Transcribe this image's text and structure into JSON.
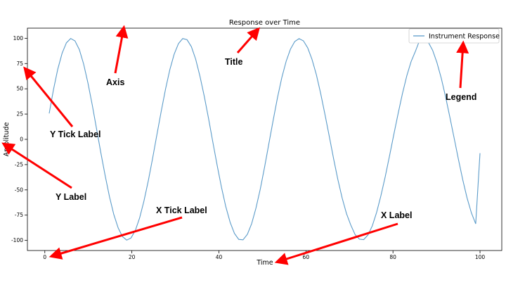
{
  "chart_data": {
    "type": "line",
    "title": "Response over Time",
    "xlabel": "Time",
    "ylabel": "Amplitude",
    "xlim": [
      -4,
      105
    ],
    "ylim": [
      -110,
      110
    ],
    "xticks": [
      0,
      20,
      40,
      60,
      80,
      100
    ],
    "yticks": [
      -100,
      -75,
      -50,
      -25,
      0,
      25,
      50,
      75,
      100
    ],
    "grid": false,
    "legend_position": "top-right",
    "series": [
      {
        "name": "Instrument Response",
        "color": "#5b9bc9",
        "x": [
          1.0,
          1.99,
          2.98,
          3.97,
          4.96,
          5.95,
          6.94,
          7.93,
          8.92,
          9.91,
          10.9,
          11.89,
          12.88,
          13.87,
          14.86,
          15.85,
          16.84,
          17.83,
          18.82,
          19.81,
          20.8,
          21.79,
          22.78,
          23.77,
          24.76,
          25.75,
          26.74,
          27.73,
          28.72,
          29.71,
          30.7,
          31.69,
          32.68,
          33.67,
          34.66,
          35.65,
          36.64,
          37.63,
          38.62,
          39.61,
          40.6,
          41.59,
          42.58,
          43.57,
          44.56,
          45.55,
          46.54,
          47.53,
          48.52,
          49.51,
          50.5,
          51.49,
          52.48,
          53.47,
          54.46,
          55.45,
          56.44,
          57.43,
          58.42,
          59.41,
          60.4,
          61.39,
          62.38,
          63.37,
          64.36,
          65.35,
          66.34,
          67.33,
          68.32,
          69.31,
          70.3,
          71.29,
          72.28,
          73.27,
          74.26,
          75.25,
          76.24,
          77.23,
          78.22,
          79.21,
          80.2,
          81.19,
          82.18,
          83.17,
          84.16,
          85.15,
          86.14,
          87.13,
          88.12,
          89.11,
          90.1,
          91.09,
          92.08,
          93.07,
          94.06,
          95.05,
          96.04,
          97.03,
          98.02,
          99.01,
          100.0
        ],
        "y": [
          25.6,
          49.2,
          69.4,
          85.2,
          95.5,
          99.8,
          97.4,
          88.8,
          74.5,
          55.9,
          33.9,
          10.4,
          -13.3,
          -36.1,
          -56.8,
          -74.3,
          -87.6,
          -96.2,
          -99.7,
          -97.6,
          -90.1,
          -77.7,
          -61.1,
          -41.1,
          -19.0,
          4.4,
          27.7,
          49.6,
          68.8,
          84.2,
          94.7,
          99.7,
          98.6,
          91.7,
          79.4,
          62.5,
          42.5,
          20.5,
          -2.9,
          -26.1,
          -47.6,
          -66.6,
          -82.1,
          -93.1,
          -99.0,
          -99.4,
          -94.0,
          -83.4,
          -68.1,
          -49.1,
          -27.4,
          -4.2,
          19.2,
          41.4,
          61.1,
          77.3,
          89.2,
          96.8,
          99.6,
          97.5,
          90.6,
          79.2,
          64.1,
          45.7,
          25.0,
          3.1,
          -18.9,
          -39.6,
          -58.1,
          -73.4,
          -84.7,
          -94.1,
          -98.8,
          -99.2,
          -94.6,
          -85.5,
          -72.3,
          -55.8,
          -36.8,
          -16.3,
          4.9,
          25.8,
          45.4,
          62.7,
          76.8,
          87.1,
          98.2,
          99.5,
          96.0,
          88.1,
          76.0,
          60.5,
          42.2,
          22.0,
          0.9,
          -20.1,
          -40.1,
          -58.0,
          -72.8,
          -83.6,
          -13.7
        ]
      }
    ],
    "annotations": [
      {
        "label": "Axis",
        "target": "axis"
      },
      {
        "label": "Title",
        "target": "title"
      },
      {
        "label": "Legend",
        "target": "legend"
      },
      {
        "label": "Y Tick Label",
        "target": "y-tick-label"
      },
      {
        "label": "Y Label",
        "target": "y-label"
      },
      {
        "label": "X Tick Label",
        "target": "x-tick-label"
      },
      {
        "label": "X Label",
        "target": "x-label"
      }
    ]
  }
}
